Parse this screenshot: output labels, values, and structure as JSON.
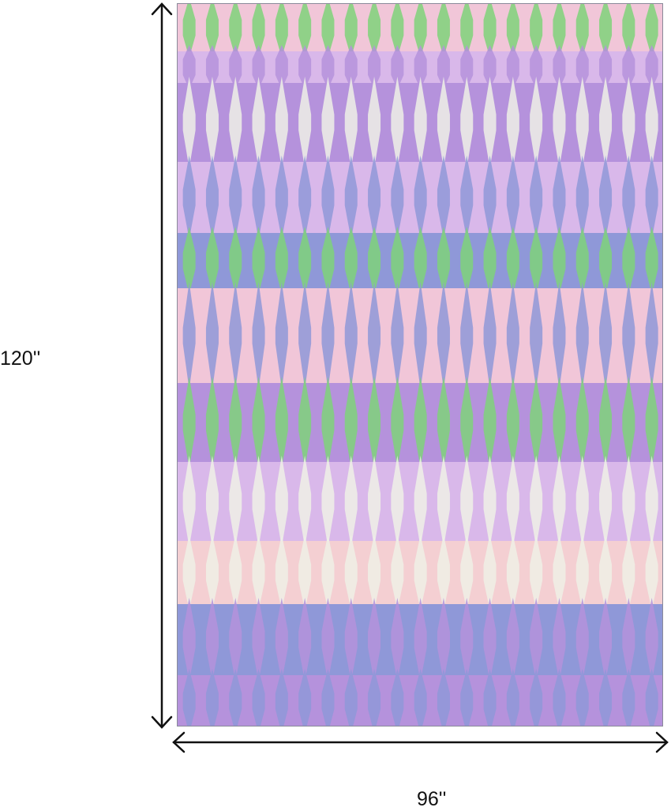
{
  "product": {
    "height_label": "120''",
    "width_label": "96''",
    "colors": {
      "pink": "#f1c6d8",
      "lilac": "#d9b8ea",
      "purple": "#b592dc",
      "blue": "#8f98d8",
      "cream": "#eef0e6",
      "green": "#7fd27a",
      "peach": "#f4cfd2"
    }
  }
}
